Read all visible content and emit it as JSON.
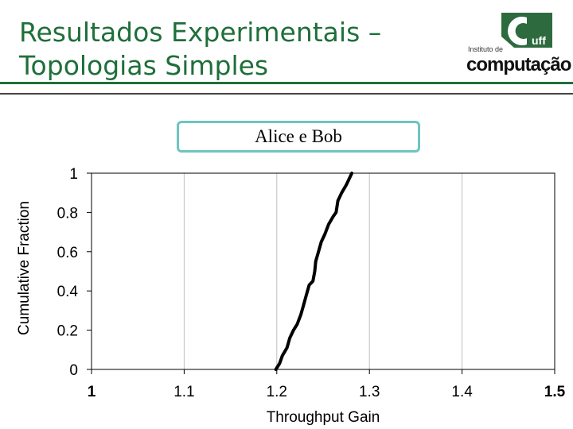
{
  "header": {
    "title_line1": "Resultados Experimentais –",
    "title_line2": "Topologias Simples",
    "logo_institute": "Instituto de",
    "logo_name": "computação",
    "logo_mark_text": "uff"
  },
  "colors": {
    "title": "#1f6f3a",
    "rule": "#1f6f3a",
    "title_box_border": "#6fc4c0",
    "series": "#000000",
    "grid": "#bfbfbf"
  },
  "chart_data": {
    "type": "line",
    "title": "Alice e Bob",
    "xlabel": "Throughput Gain",
    "ylabel": "Cumulative Fraction",
    "xlim": [
      1,
      1.5
    ],
    "ylim": [
      0,
      1
    ],
    "x_ticks": [
      "1",
      "1.1",
      "1.2",
      "1.3",
      "1.4",
      "1.5"
    ],
    "y_ticks": [
      "0",
      "0.2",
      "0.4",
      "0.6",
      "0.8",
      "1"
    ],
    "grid": "vertical",
    "series": [
      {
        "values": [
          [
            1.199,
            0.0
          ],
          [
            1.203,
            0.03
          ],
          [
            1.206,
            0.07
          ],
          [
            1.211,
            0.11
          ],
          [
            1.214,
            0.16
          ],
          [
            1.218,
            0.2
          ],
          [
            1.222,
            0.23
          ],
          [
            1.226,
            0.28
          ],
          [
            1.229,
            0.33
          ],
          [
            1.232,
            0.38
          ],
          [
            1.235,
            0.43
          ],
          [
            1.239,
            0.45
          ],
          [
            1.241,
            0.5
          ],
          [
            1.242,
            0.55
          ],
          [
            1.245,
            0.6
          ],
          [
            1.248,
            0.65
          ],
          [
            1.252,
            0.69
          ],
          [
            1.256,
            0.74
          ],
          [
            1.261,
            0.78
          ],
          [
            1.264,
            0.8
          ],
          [
            1.266,
            0.86
          ],
          [
            1.27,
            0.9
          ],
          [
            1.275,
            0.94
          ],
          [
            1.278,
            0.97
          ],
          [
            1.281,
            1.0
          ]
        ]
      }
    ]
  }
}
